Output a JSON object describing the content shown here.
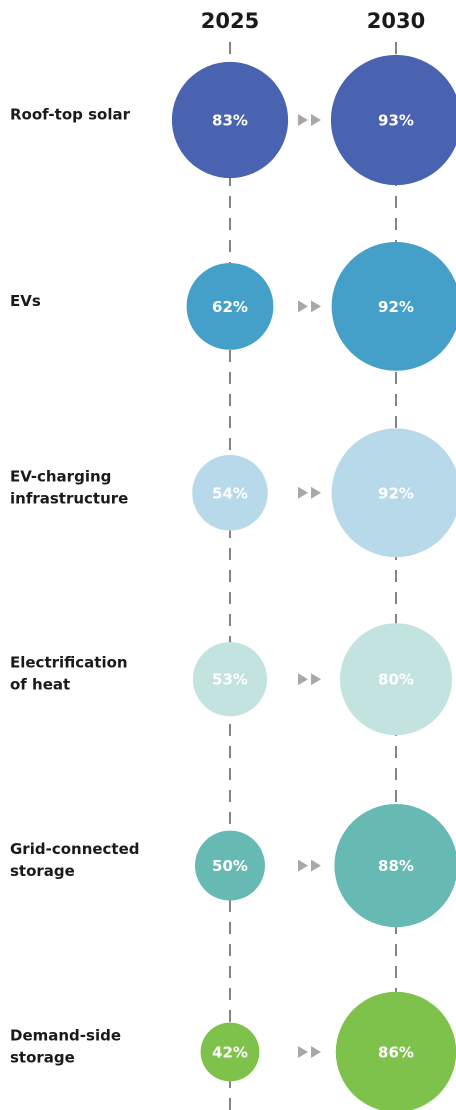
{
  "chart_data": {
    "type": "bubble",
    "categories": [
      [
        "Roof-top solar"
      ],
      [
        "EVs"
      ],
      [
        "EV-charging",
        "infrastructure"
      ],
      [
        "Electrification",
        "of heat"
      ],
      [
        "Grid-connected",
        "storage"
      ],
      [
        "Demand-side",
        "storage"
      ]
    ],
    "colors": [
      "#4a63b0",
      "#45a0c9",
      "#b8d9ea",
      "#c3e3e0",
      "#67bab3",
      "#7ec24c"
    ],
    "series": [
      {
        "name": "2025",
        "values": [
          83,
          62,
          54,
          53,
          50,
          42
        ],
        "value_labels": [
          "83%",
          "62%",
          "54%",
          "53%",
          "50%",
          "42%"
        ]
      },
      {
        "name": "2030",
        "values": [
          93,
          92,
          92,
          80,
          88,
          86
        ],
        "value_labels": [
          "93%",
          "92%",
          "92%",
          "80%",
          "88%",
          "86%"
        ]
      }
    ]
  }
}
